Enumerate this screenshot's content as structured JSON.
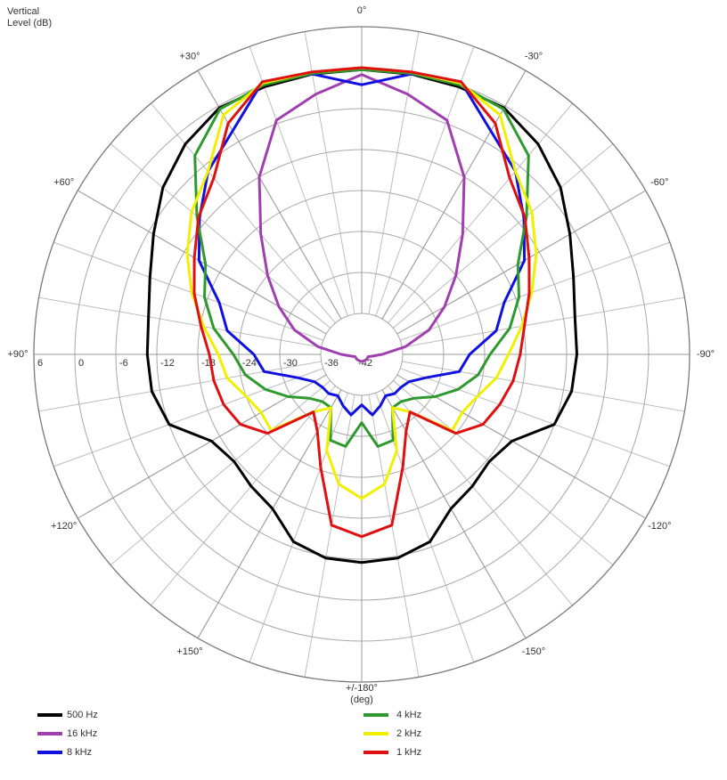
{
  "chart_data": {
    "type": "polar",
    "r_label": [
      "Vertical",
      "Level  (dB)"
    ],
    "theta_label": "(deg)",
    "rlim": [
      -42,
      6
    ],
    "rticks": [
      -42,
      -36,
      -30,
      -24,
      -18,
      -12,
      -6,
      0,
      6
    ],
    "thetaticks": [
      {
        "value": 0,
        "label": "0°"
      },
      {
        "value": 30,
        "label": "+30°"
      },
      {
        "value": -30,
        "label": "-30°"
      },
      {
        "value": 60,
        "label": "+60°"
      },
      {
        "value": -60,
        "label": "-60°"
      },
      {
        "value": 90,
        "label": "+90°"
      },
      {
        "value": -90,
        "label": "-90°"
      },
      {
        "value": 120,
        "label": "+120°"
      },
      {
        "value": -120,
        "label": "-120°"
      },
      {
        "value": 150,
        "label": "+150°"
      },
      {
        "value": -150,
        "label": "-150°"
      },
      {
        "value": 180,
        "label": "+/-180°"
      }
    ],
    "theta": [
      -170,
      -160,
      -150,
      -140,
      -130,
      -120,
      -110,
      -100,
      -90,
      -80,
      -70,
      -60,
      -50,
      -40,
      -30,
      -20,
      -10,
      0,
      10,
      20,
      30,
      40,
      50,
      60,
      70,
      80,
      90,
      100,
      110,
      120,
      130,
      140,
      150,
      160,
      170,
      180
    ],
    "series": [
      {
        "name": "500 Hz",
        "color": "#000000",
        "values": [
          -11.7,
          -12.8,
          -15.9,
          -16.8,
          -17.6,
          -16.6,
          -12,
          -10.8,
          -10.5,
          -10.3,
          -9,
          -6.8,
          -4,
          -1.8,
          -0.3,
          -0.3,
          -0.3,
          -0.3,
          -0.3,
          -0.3,
          -0.3,
          -1.8,
          -4,
          -6.8,
          -9,
          -10.3,
          -10.6,
          -10.8,
          -12,
          -16.6,
          -17.6,
          -16.8,
          -15.9,
          -12.8,
          -11.7,
          -11.5
        ]
      },
      {
        "name": "16 kHz",
        "color": "#a040b0",
        "values": [
          -41,
          -41,
          -41,
          -41,
          -41,
          -41,
          -41,
          -40.5,
          -39,
          -35.5,
          -31.5,
          -28,
          -24,
          -19,
          -12,
          -5.5,
          -3.3,
          -1,
          -3.3,
          -5.5,
          -12,
          -19,
          -24,
          -28,
          -31.5,
          -35.5,
          -39,
          -40.5,
          -41,
          -41,
          -41,
          -41,
          -41,
          -41,
          -41,
          -41
        ]
      },
      {
        "name": "8 kHz",
        "color": "#1010e0",
        "values": [
          -33,
          -34,
          -35,
          -34.5,
          -34.5,
          -34,
          -32,
          -27.5,
          -26.2,
          -22,
          -19.8,
          -14.5,
          -11,
          -7,
          -4.2,
          0.5,
          -0.3,
          -2.5,
          -0.3,
          0.5,
          -4.2,
          -7,
          -11,
          -14.5,
          -19.8,
          -22,
          -26.2,
          -27.5,
          -32,
          -34,
          -34.5,
          -34.5,
          -35,
          -34,
          -33,
          -34.6
        ]
      },
      {
        "name": "4 kHz",
        "color": "#2e9a2e",
        "values": [
          -28.3,
          -28.6,
          -33,
          -33,
          -32,
          -29.6,
          -27,
          -24.7,
          -23.2,
          -20,
          -17.5,
          -15.6,
          -10.5,
          -4,
          -0.5,
          0,
          -0.2,
          -0.3,
          -0.2,
          0,
          -0.5,
          -4,
          -10.5,
          -15.6,
          -17.5,
          -20,
          -23.2,
          -24.7,
          -27,
          -29.6,
          -32,
          -33,
          -33,
          -28.6,
          -28.3,
          -32
        ]
      },
      {
        "name": "2 kHz",
        "color": "#f0f000",
        "values": [
          -22.7,
          -27,
          -33,
          -31,
          -24.7,
          -25,
          -24,
          -22,
          -20.5,
          -18.2,
          -15.5,
          -12.5,
          -9.5,
          -7,
          -1.5,
          0.3,
          0,
          0,
          0,
          0.3,
          -1.5,
          -7,
          -9.5,
          -12.5,
          -15.5,
          -18.5,
          -21,
          -22,
          -24,
          -25,
          -24.7,
          -31,
          -33,
          -27,
          -22.7,
          -20.9
        ]
      },
      {
        "name": "1 kHz",
        "color": "#e01010",
        "values": [
          -16.6,
          -24.4,
          -29,
          -31,
          -24,
          -21.5,
          -20.5,
          -19.5,
          -18.8,
          -17.8,
          -15.9,
          -13.7,
          -10.8,
          -8.3,
          -2.9,
          0.5,
          0,
          0,
          0,
          0.5,
          -2.9,
          -8.3,
          -10.8,
          -13.7,
          -15.9,
          -18.1,
          -19.7,
          -20,
          -20.5,
          -21.5,
          -24,
          -31,
          -29,
          -24.4,
          -16.6,
          -15.3
        ]
      }
    ]
  }
}
